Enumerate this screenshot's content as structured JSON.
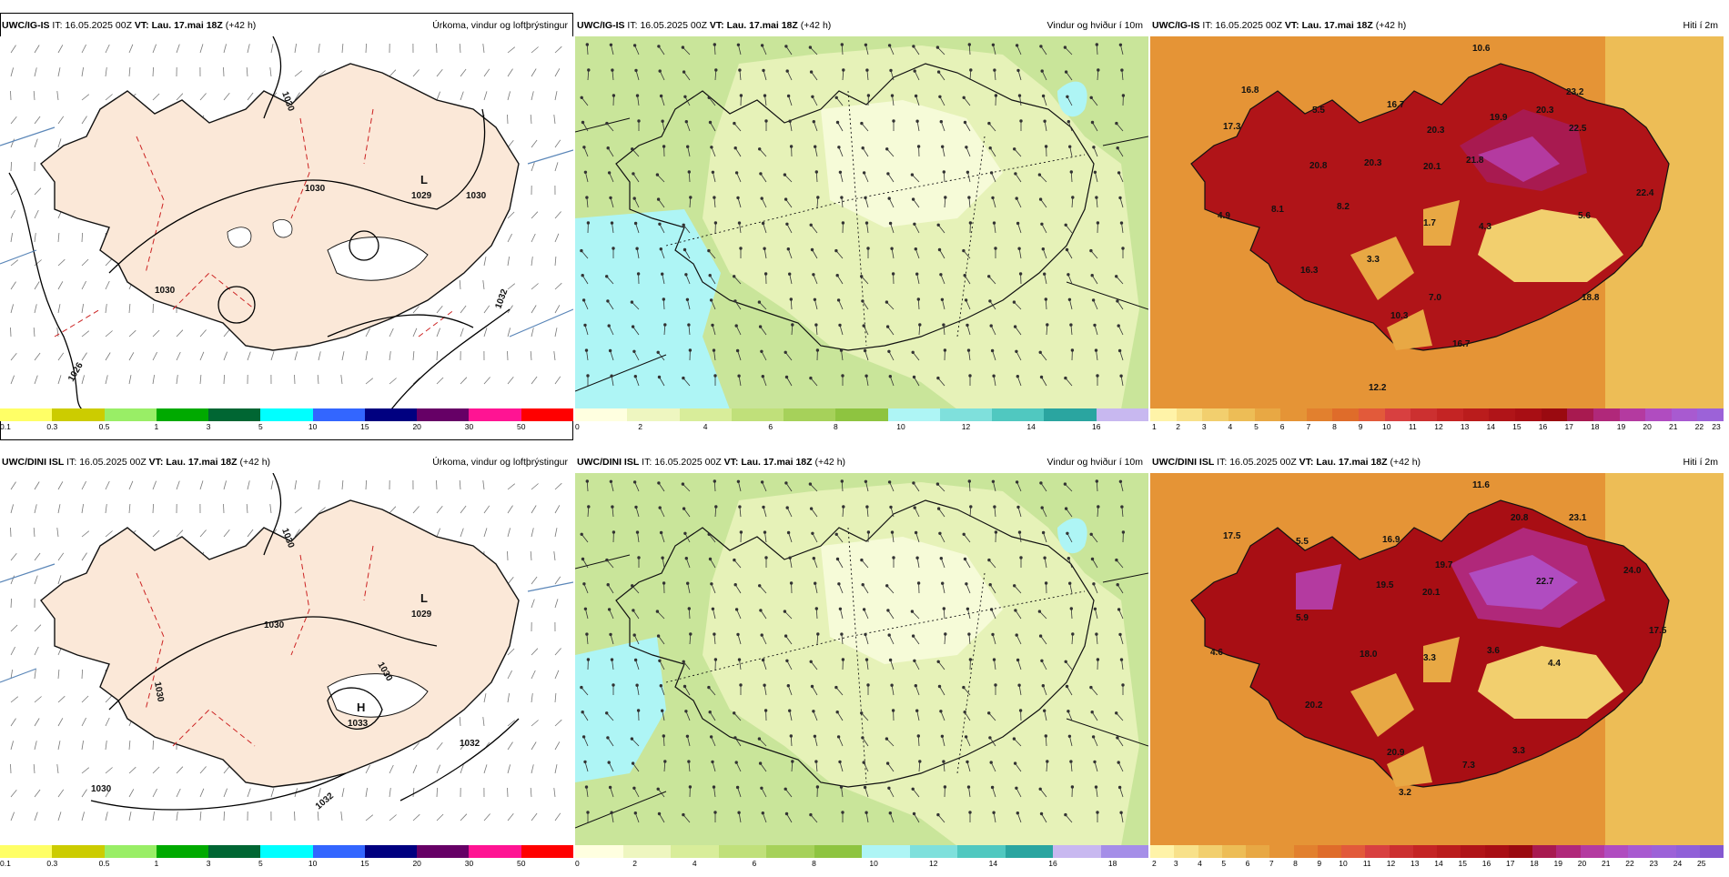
{
  "panels": {
    "p1": {
      "source": "UWC/IG-IS",
      "it_label": "IT:",
      "it": "16.05.2025 00Z",
      "vt_label": "VT:",
      "vt": "Lau. 17.mai 18Z",
      "lead": "(+42 h)",
      "title": "Úrkoma, vindur og loftþrýstingur",
      "pressure_center": "L",
      "pressure_value": "1029",
      "isobars": [
        "1030",
        "1030",
        "1030",
        "1032",
        "1030",
        "1026"
      ]
    },
    "p2": {
      "source": "UWC/IG-IS",
      "it_label": "IT:",
      "it": "16.05.2025 00Z",
      "vt_label": "VT:",
      "vt": "Lau. 17.mai 18Z",
      "lead": "(+42 h)",
      "title": "Vindur og hviður í 10m"
    },
    "p3": {
      "source": "UWC/IG-IS",
      "it_label": "IT:",
      "it": "16.05.2025 00Z",
      "vt_label": "VT:",
      "vt": "Lau. 17.mai 18Z",
      "lead": "(+42 h)",
      "title": "Hiti í 2m",
      "temps": [
        "10.6",
        "16.8",
        "5.5",
        "16.7",
        "17.3",
        "20.3",
        "19.9",
        "20.3",
        "20.8",
        "20.3",
        "20.1",
        "21.8",
        "22.5",
        "4.9",
        "8.1",
        "8.2",
        "1.7",
        "4.3",
        "5.6",
        "22.4",
        "3.3",
        "16.3",
        "7.0",
        "18.8",
        "10.3",
        "16.7",
        "12.2",
        "23.2"
      ]
    },
    "p4": {
      "source": "UWC/DINI ISL",
      "it_label": "IT:",
      "it": "16.05.2025 00Z",
      "vt_label": "VT:",
      "vt": "Lau. 17.mai 18Z",
      "lead": "(+42 h)",
      "title": "Úrkoma, vindur og loftþrýstingur",
      "pressure_center_low": "L",
      "pressure_value_low": "1029",
      "pressure_center_high": "H",
      "pressure_value_high": "1033",
      "isobars": [
        "1030",
        "1030",
        "1030",
        "1032",
        "1032",
        "1030",
        "1030"
      ]
    },
    "p5": {
      "source": "UWC/DINI ISL",
      "it_label": "IT:",
      "it": "16.05.2025 00Z",
      "vt_label": "VT:",
      "vt": "Lau. 17.mai 18Z",
      "lead": "(+42 h)",
      "title": "Vindur og hviður í 10m"
    },
    "p6": {
      "source": "UWC/DINI ISL",
      "it_label": "IT:",
      "it": "16.05.2025 00Z",
      "vt_label": "VT:",
      "vt": "Lau. 17.mai 18Z",
      "lead": "(+42 h)",
      "title": "Hiti í 2m",
      "temps": [
        "11.6",
        "17.5",
        "5.5",
        "16.9",
        "20.8",
        "23.1",
        "19.5",
        "20.1",
        "19.7",
        "22.7",
        "24.0",
        "4.6",
        "5.9",
        "18.0",
        "3.3",
        "3.6",
        "4.4",
        "17.5",
        "20.2",
        "20.9",
        "7.3",
        "3.3",
        "3.2"
      ]
    }
  },
  "precip_scale": {
    "colors": [
      "#ffff66",
      "#cccc00",
      "#99ee66",
      "#00aa00",
      "#006633",
      "#00ffff",
      "#3366ff",
      "#000080",
      "#660066",
      "#ff1493",
      "#ff0000"
    ],
    "labels": [
      "0.1",
      "0.3",
      "0.5",
      "1",
      "3",
      "5",
      "10",
      "15",
      "20",
      "30",
      "50"
    ]
  },
  "wind_scale_top": {
    "colors": [
      "#ffffe0",
      "#eef6c0",
      "#d8ed9a",
      "#c0e07a",
      "#a6d15a",
      "#8ec440",
      "#aef5f5",
      "#7fe0dc",
      "#50c8c0",
      "#2aa5a0",
      "#c8b8f0"
    ],
    "labels": [
      "0",
      "2",
      "4",
      "6",
      "8",
      "10",
      "12",
      "14",
      "16"
    ]
  },
  "wind_scale_bottom": {
    "colors": [
      "#ffffe0",
      "#eef6c0",
      "#d8ed9a",
      "#c0e07a",
      "#a6d15a",
      "#8ec440",
      "#aef5f5",
      "#7fe0dc",
      "#50c8c0",
      "#2aa5a0",
      "#c8b8f0",
      "#a58ee8"
    ],
    "labels": [
      "0",
      "2",
      "4",
      "6",
      "8",
      "10",
      "12",
      "14",
      "16",
      "18"
    ]
  },
  "temp_scale_top": {
    "colors": [
      "#fff3a8",
      "#f8e18a",
      "#f2cf6e",
      "#edbd56",
      "#e8a844",
      "#e59436",
      "#e2802e",
      "#df6c2a",
      "#e25a3a",
      "#d84040",
      "#cc3030",
      "#c42424",
      "#ba1c1c",
      "#b01418",
      "#a80e14",
      "#9a0a10",
      "#a81a50",
      "#b0287a",
      "#b43aa0",
      "#b04cc0",
      "#a85ad0",
      "#9c62d8"
    ],
    "labels": [
      "1",
      "2",
      "3",
      "4",
      "5",
      "6",
      "7",
      "8",
      "9",
      "10",
      "11",
      "12",
      "13",
      "14",
      "15",
      "16",
      "17",
      "18",
      "19",
      "20",
      "21",
      "22",
      "23"
    ]
  },
  "temp_scale_bottom": {
    "colors": [
      "#fff3a8",
      "#f8e18a",
      "#f2cf6e",
      "#edbd56",
      "#e8a844",
      "#e59436",
      "#e2802e",
      "#df6c2a",
      "#e25a3a",
      "#d84040",
      "#cc3030",
      "#c42424",
      "#ba1c1c",
      "#b01418",
      "#a80e14",
      "#9a0a10",
      "#a81a50",
      "#b0287a",
      "#b43aa0",
      "#b04cc0",
      "#a85ad0",
      "#9c62d8",
      "#9060d8",
      "#8458d0"
    ],
    "labels": [
      "2",
      "3",
      "4",
      "5",
      "6",
      "7",
      "8",
      "9",
      "10",
      "11",
      "12",
      "13",
      "14",
      "15",
      "16",
      "17",
      "18",
      "19",
      "20",
      "21",
      "22",
      "23",
      "24",
      "25"
    ]
  },
  "colors": {
    "land_fill": "#fbe8d8",
    "glacier": "#ffffff",
    "coast": "#111111",
    "isobar": "#000000",
    "precip_contour": "#cc2222",
    "grid": "#7d9fc4"
  }
}
